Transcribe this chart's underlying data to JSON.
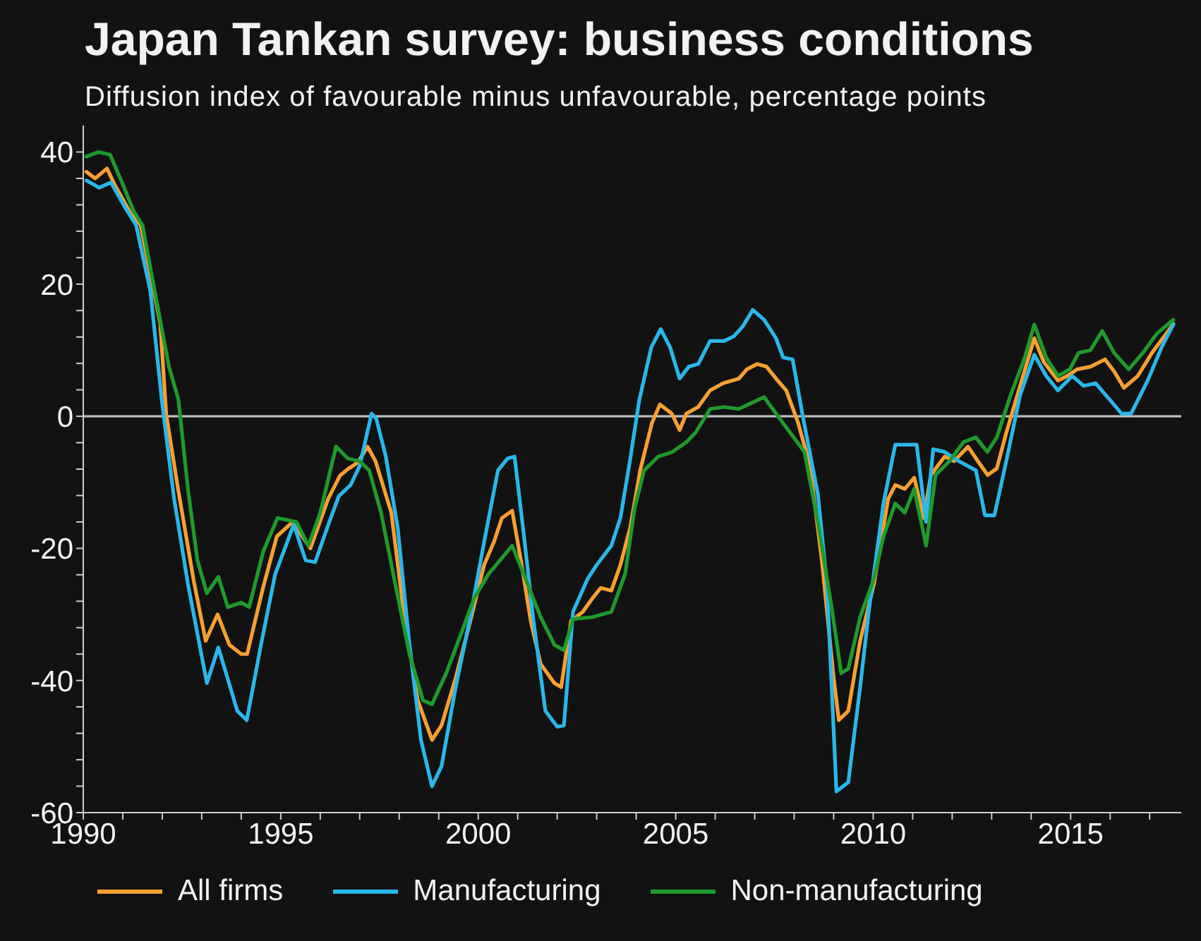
{
  "chart_data": {
    "type": "line",
    "title": "Japan Tankan survey: business conditions",
    "subtitle": "Diffusion index of favourable minus unfavourable, percentage points",
    "xlim": [
      1990,
      2017.8
    ],
    "xticks": [
      1990,
      {
        "value": 1991,
        "label": null
      },
      {
        "value": 1992,
        "label": null
      },
      {
        "value": 1993,
        "label": null
      },
      {
        "value": 1994,
        "label": null
      },
      1995,
      {
        "value": 1996,
        "label": null
      },
      {
        "value": 1997,
        "label": null
      },
      {
        "value": 1998,
        "label": null
      },
      {
        "value": 1999,
        "label": null
      },
      2000,
      {
        "value": 2001,
        "label": null
      },
      {
        "value": 2002,
        "label": null
      },
      {
        "value": 2003,
        "label": null
      },
      {
        "value": 2004,
        "label": null
      },
      2005,
      {
        "value": 2006,
        "label": null
      },
      {
        "value": 2007,
        "label": null
      },
      {
        "value": 2008,
        "label": null
      },
      {
        "value": 2009,
        "label": null
      },
      2010,
      {
        "value": 2011,
        "label": null
      },
      {
        "value": 2012,
        "label": null
      },
      {
        "value": 2013,
        "label": null
      },
      {
        "value": 2014,
        "label": null
      },
      2015,
      {
        "value": 2016,
        "label": null
      },
      {
        "value": 2017,
        "label": null
      }
    ],
    "ylim": [
      -60,
      44
    ],
    "yticks": [
      -60,
      {
        "value": -56,
        "label": null
      },
      {
        "value": -52,
        "label": null
      },
      {
        "value": -48,
        "label": null
      },
      {
        "value": -44,
        "label": null
      },
      -40,
      {
        "value": -36,
        "label": null
      },
      {
        "value": -32,
        "label": null
      },
      {
        "value": -28,
        "label": null
      },
      {
        "value": -24,
        "label": null
      },
      -20,
      {
        "value": -16,
        "label": null
      },
      {
        "value": -12,
        "label": null
      },
      {
        "value": -8,
        "label": null
      },
      {
        "value": -4,
        "label": null
      },
      0,
      {
        "value": 4,
        "label": null
      },
      {
        "value": 8,
        "label": null
      },
      {
        "value": 12,
        "label": null
      },
      {
        "value": 16,
        "label": null
      },
      20,
      {
        "value": 24,
        "label": null
      },
      {
        "value": 28,
        "label": null
      },
      {
        "value": 32,
        "label": null
      },
      {
        "value": 36,
        "label": null
      },
      40
    ],
    "ref_lines": [
      {
        "axis": "y",
        "value": 0,
        "color": "#bdbdbd"
      }
    ],
    "legend": "bottom",
    "series": [
      {
        "name": "All firms",
        "color": "#f7a031",
        "x": [
          1990.08,
          1990.3,
          1990.6,
          1990.8,
          1991.2,
          1991.45,
          1991.95,
          1992.1,
          1992.4,
          1992.8,
          1993.1,
          1993.4,
          1993.7,
          1994.0,
          1994.15,
          1994.55,
          1994.9,
          1995.3,
          1995.75,
          1996.2,
          1996.5,
          1996.7,
          1996.95,
          1997.2,
          1997.4,
          1997.8,
          1998.1,
          1998.47,
          1998.83,
          1999.07,
          1999.43,
          1999.8,
          2000.15,
          2000.4,
          2000.6,
          2000.86,
          2001.1,
          2001.33,
          2001.58,
          2001.93,
          2002.1,
          2002.35,
          2002.65,
          2002.9,
          2003.1,
          2003.37,
          2003.6,
          2003.85,
          2004.1,
          2004.4,
          2004.6,
          2004.9,
          2005.1,
          2005.27,
          2005.57,
          2005.87,
          2006.2,
          2006.6,
          2006.8,
          2007.06,
          2007.3,
          2007.54,
          2007.8,
          2008.1,
          2008.4,
          2008.7,
          2009.0,
          2009.13,
          2009.37,
          2009.67,
          2010.02,
          2010.38,
          2010.56,
          2010.8,
          2011.04,
          2011.28,
          2011.46,
          2011.81,
          2012.05,
          2012.4,
          2012.65,
          2012.9,
          2013.13,
          2013.37,
          2013.72,
          2014.08,
          2014.32,
          2014.68,
          2014.92,
          2015.16,
          2015.5,
          2015.87,
          2016.1,
          2016.35,
          2016.7,
          2017.06,
          2017.42,
          2017.6
        ],
        "values": [
          37,
          36,
          37.5,
          35,
          30.7,
          29,
          14,
          0.3,
          -11,
          -25,
          -34,
          -30,
          -34.6,
          -36,
          -36,
          -26,
          -18.2,
          -16,
          -20,
          -12.5,
          -9,
          -8,
          -7,
          -4.6,
          -6.8,
          -14.6,
          -29,
          -43,
          -49,
          -46.8,
          -39.6,
          -31,
          -22.5,
          -19,
          -15.4,
          -14.3,
          -22.5,
          -31,
          -37.5,
          -40.4,
          -41,
          -31,
          -29.6,
          -27.5,
          -26,
          -26.4,
          -22.5,
          -16.8,
          -8.2,
          -1,
          1.8,
          0.4,
          -2.1,
          0.4,
          1.4,
          3.9,
          5,
          5.7,
          7.1,
          7.9,
          7.5,
          5.7,
          3.9,
          -1,
          -7.5,
          -21.8,
          -39.6,
          -46,
          -44.6,
          -34,
          -25.4,
          -12.5,
          -10.4,
          -11,
          -9.3,
          -15.4,
          -8.9,
          -6.1,
          -6.8,
          -4.6,
          -6.8,
          -8.9,
          -7.9,
          -2.5,
          4.6,
          11.8,
          8.2,
          5.4,
          6.1,
          7.1,
          7.5,
          8.6,
          6.8,
          4.3,
          6.1,
          9.6,
          12.5,
          14
        ]
      },
      {
        "name": "Manufacturing",
        "color": "#2ab7ea",
        "x": [
          1990.08,
          1990.4,
          1990.7,
          1991.04,
          1991.34,
          1991.7,
          1992.0,
          1992.3,
          1992.65,
          1993.13,
          1993.42,
          1993.72,
          1993.9,
          1994.14,
          1994.5,
          1994.86,
          1995.33,
          1995.63,
          1995.87,
          1996.23,
          1996.47,
          1996.77,
          1997.0,
          1997.3,
          1997.42,
          1997.66,
          1997.96,
          1998.26,
          1998.55,
          1998.83,
          1999.07,
          1999.43,
          1999.8,
          2000.15,
          2000.5,
          2000.74,
          2000.92,
          2001.16,
          2001.4,
          2001.7,
          2002.0,
          2002.17,
          2002.4,
          2002.77,
          2003.0,
          2003.37,
          2003.6,
          2003.84,
          2004.08,
          2004.38,
          2004.62,
          2004.86,
          2005.1,
          2005.33,
          2005.57,
          2005.87,
          2006.23,
          2006.47,
          2006.7,
          2006.95,
          2007.24,
          2007.54,
          2007.72,
          2007.96,
          2008.23,
          2008.6,
          2008.83,
          2009.07,
          2009.37,
          2009.67,
          2009.9,
          2010.26,
          2010.56,
          2011.1,
          2011.34,
          2011.52,
          2011.81,
          2012.17,
          2012.6,
          2012.83,
          2013.07,
          2013.37,
          2013.72,
          2014.08,
          2014.38,
          2014.68,
          2015.04,
          2015.33,
          2015.63,
          2015.99,
          2016.29,
          2016.53,
          2016.95,
          2017.3,
          2017.6
        ],
        "values": [
          35.7,
          34.6,
          35.4,
          31.8,
          28.9,
          18.9,
          1.8,
          -12.5,
          -25.4,
          -40.4,
          -35,
          -41,
          -44.6,
          -46,
          -34.6,
          -23.9,
          -16.4,
          -21.8,
          -22.1,
          -16,
          -12.1,
          -10.4,
          -7.5,
          0.4,
          -0.4,
          -6.1,
          -16.8,
          -34.6,
          -49,
          -56,
          -53,
          -41,
          -30.4,
          -19,
          -8.2,
          -6.4,
          -6.1,
          -18.2,
          -31,
          -44.6,
          -47,
          -46.8,
          -29.6,
          -24.6,
          -22.5,
          -19.6,
          -15.4,
          -6.8,
          2.5,
          10.4,
          13.2,
          10.4,
          5.7,
          7.5,
          7.9,
          11.4,
          11.4,
          12.1,
          13.6,
          16.1,
          14.6,
          11.8,
          8.9,
          8.6,
          -0.4,
          -11.8,
          -25.4,
          -56.8,
          -55.4,
          -41,
          -29,
          -13.2,
          -4.3,
          -4.3,
          -16,
          -5,
          -5.4,
          -6.8,
          -8.2,
          -15,
          -15,
          -6.8,
          3.2,
          9.3,
          6.1,
          3.9,
          6.1,
          4.6,
          5,
          2.5,
          0.4,
          0.4,
          5.4,
          10.4,
          13.9
        ]
      },
      {
        "name": "Non-manufacturing",
        "color": "#1f9a2c",
        "x": [
          1990.08,
          1990.38,
          1990.68,
          1990.98,
          1991.28,
          1991.5,
          1991.81,
          1992.17,
          1992.41,
          1992.65,
          1992.89,
          1993.13,
          1993.42,
          1993.66,
          1994.0,
          1994.2,
          1994.56,
          1994.92,
          1995.4,
          1995.7,
          1996.0,
          1996.4,
          1996.7,
          1997.0,
          1997.24,
          1997.54,
          1997.9,
          1998.26,
          1998.6,
          1998.83,
          1999.19,
          1999.55,
          1999.9,
          2000.26,
          2000.86,
          2001.2,
          2001.58,
          2001.93,
          2002.17,
          2002.4,
          2002.9,
          2003.37,
          2003.72,
          2003.96,
          2004.2,
          2004.56,
          2004.92,
          2005.27,
          2005.5,
          2005.87,
          2006.23,
          2006.6,
          2006.95,
          2007.24,
          2007.54,
          2007.9,
          2008.26,
          2008.6,
          2008.95,
          2009.19,
          2009.37,
          2009.67,
          2010.02,
          2010.26,
          2010.56,
          2010.8,
          2011.04,
          2011.34,
          2011.58,
          2011.93,
          2012.29,
          2012.6,
          2012.89,
          2013.13,
          2013.48,
          2013.84,
          2014.08,
          2014.38,
          2014.68,
          2014.98,
          2015.2,
          2015.5,
          2015.8,
          2016.1,
          2016.47,
          2016.83,
          2017.18,
          2017.6
        ],
        "values": [
          39.3,
          40,
          39.6,
          35.4,
          31,
          28.9,
          18.9,
          7.5,
          2.5,
          -11,
          -21.8,
          -26.8,
          -24.3,
          -28.9,
          -28.2,
          -28.9,
          -20.4,
          -15.4,
          -16,
          -19.6,
          -14.6,
          -4.6,
          -6.4,
          -6.8,
          -8.2,
          -14.6,
          -25.4,
          -36,
          -43,
          -43.6,
          -38.9,
          -33.2,
          -27.5,
          -23.9,
          -19.6,
          -24.6,
          -30.4,
          -34.6,
          -35.4,
          -30.7,
          -30.4,
          -29.6,
          -23.9,
          -13.9,
          -8.2,
          -6.1,
          -5.4,
          -3.9,
          -2.5,
          1.1,
          1.4,
          1.1,
          2.1,
          2.9,
          0.4,
          -2.5,
          -5.4,
          -16,
          -29,
          -38.9,
          -38.2,
          -30.4,
          -24.6,
          -18.2,
          -13.2,
          -14.6,
          -11,
          -19.6,
          -8.9,
          -6.8,
          -3.9,
          -3.2,
          -5.4,
          -3.2,
          3.2,
          8.9,
          13.9,
          8.9,
          6.1,
          7.1,
          9.6,
          10,
          12.9,
          9.6,
          7.1,
          9.6,
          12.5,
          14.6
        ]
      }
    ]
  }
}
